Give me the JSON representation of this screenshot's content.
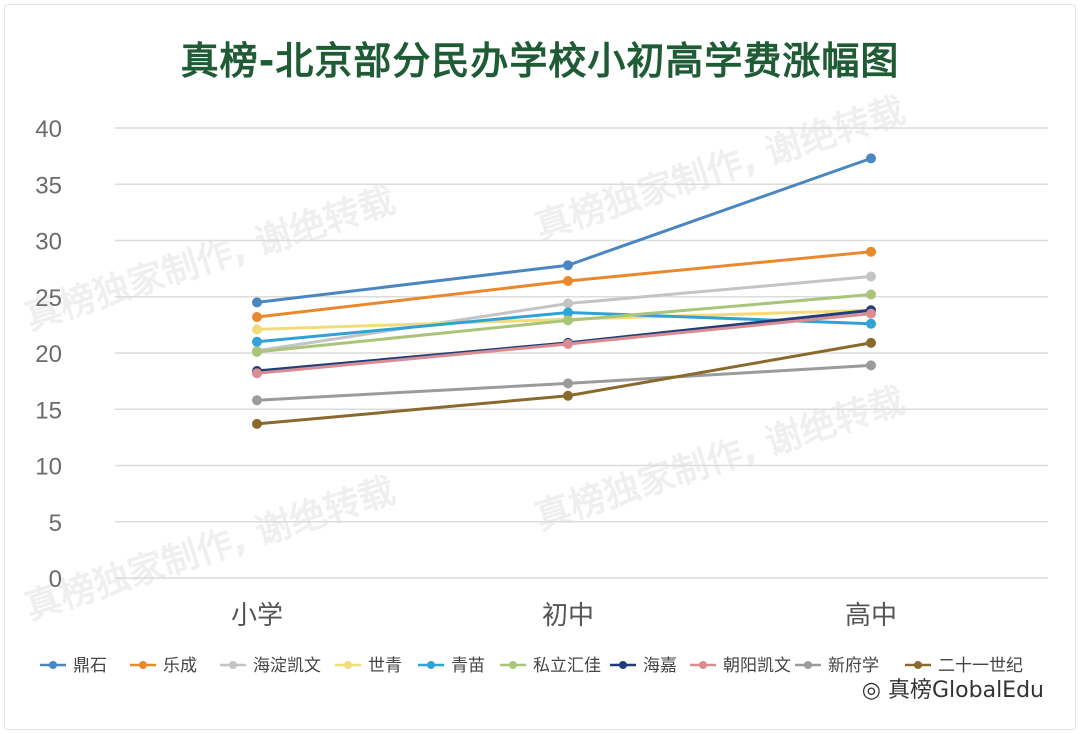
{
  "chart_data": {
    "type": "line",
    "title": "真榜-北京部分民办学校小初高学费涨幅图",
    "categories": [
      "小学",
      "初中",
      "高中"
    ],
    "ylim": [
      0,
      40
    ],
    "yticks": [
      0,
      5,
      10,
      15,
      20,
      25,
      30,
      35,
      40
    ],
    "grid": true,
    "legend_position": "bottom",
    "series": [
      {
        "name": "鼎石",
        "color": "#4a86c0",
        "values": [
          24.5,
          27.8,
          37.3
        ]
      },
      {
        "name": "乐成",
        "color": "#e8892e",
        "values": [
          23.2,
          26.4,
          29.0
        ]
      },
      {
        "name": "海淀凯文",
        "color": "#c4c4c4",
        "values": [
          20.2,
          24.4,
          26.8
        ]
      },
      {
        "name": "世青",
        "color": "#f2dc7a",
        "values": [
          22.1,
          23.0,
          23.8
        ]
      },
      {
        "name": "青苗",
        "color": "#2fa3d6",
        "values": [
          21.0,
          23.6,
          22.6
        ]
      },
      {
        "name": "私立汇佳",
        "color": "#a9c57a",
        "values": [
          20.1,
          22.9,
          25.2
        ]
      },
      {
        "name": "海嘉",
        "color": "#1f3e7a",
        "values": [
          18.4,
          20.9,
          23.8
        ]
      },
      {
        "name": "朝阳凯文",
        "color": "#d98c92",
        "values": [
          18.2,
          20.8,
          23.5
        ]
      },
      {
        "name": "新府学",
        "color": "#9b9b9b",
        "values": [
          15.8,
          17.3,
          18.9
        ]
      },
      {
        "name": "二十一世纪",
        "color": "#8a6a2c",
        "values": [
          13.7,
          16.2,
          20.9
        ]
      }
    ]
  },
  "watermark": "真榜独家制作, 谢绝转载",
  "brand": "真榜GlobalEdu"
}
